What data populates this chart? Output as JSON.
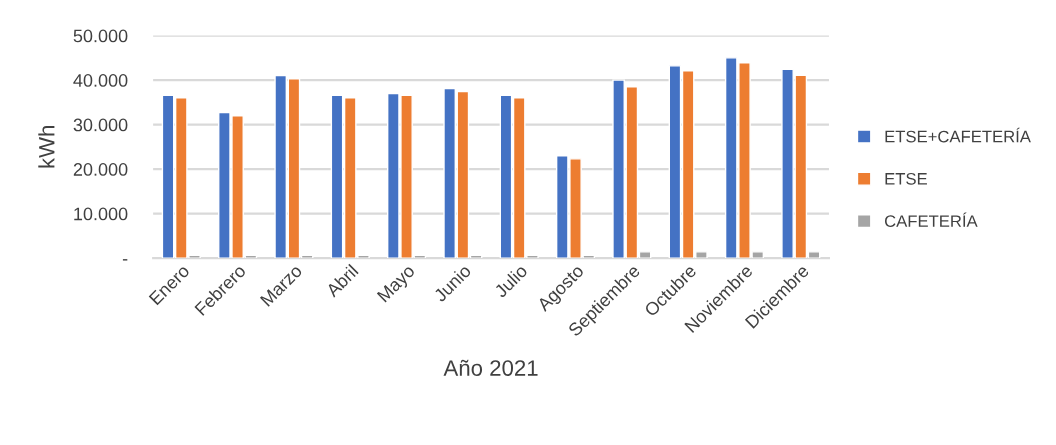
{
  "chart_data": {
    "type": "bar",
    "xlabel": "Año 2021",
    "ylabel": "kWh",
    "categories": [
      "Enero",
      "Febrero",
      "Marzo",
      "Abril",
      "Mayo",
      "Junio",
      "Julio",
      "Agosto",
      "Septiembre",
      "Octubre",
      "Noviembre",
      "Diciembre"
    ],
    "series": [
      {
        "name": "ETSE+CAFETERÍA",
        "color": "#4472c4",
        "values": [
          36600,
          32700,
          41000,
          36600,
          37000,
          38100,
          36600,
          23000,
          40000,
          43200,
          45000,
          42400
        ]
      },
      {
        "name": "ETSE",
        "color": "#ed7d31",
        "values": [
          36000,
          32000,
          40300,
          36000,
          36600,
          37400,
          36000,
          22300,
          38500,
          42100,
          43900,
          41100
        ]
      },
      {
        "name": "CAFETERÍA",
        "color": "#a5a5a5",
        "values": [
          600,
          600,
          600,
          600,
          600,
          600,
          600,
          600,
          1400,
          1400,
          1400,
          1400
        ]
      }
    ],
    "ylim": [
      0,
      50000
    ],
    "yticks": [
      {
        "value": 0,
        "label": "-"
      },
      {
        "value": 10000,
        "label": "10.000"
      },
      {
        "value": 20000,
        "label": "20.000"
      },
      {
        "value": 30000,
        "label": "30.000"
      },
      {
        "value": 40000,
        "label": "40.000"
      },
      {
        "value": 50000,
        "label": "50.000"
      }
    ],
    "grid": "y",
    "legend": "right"
  }
}
